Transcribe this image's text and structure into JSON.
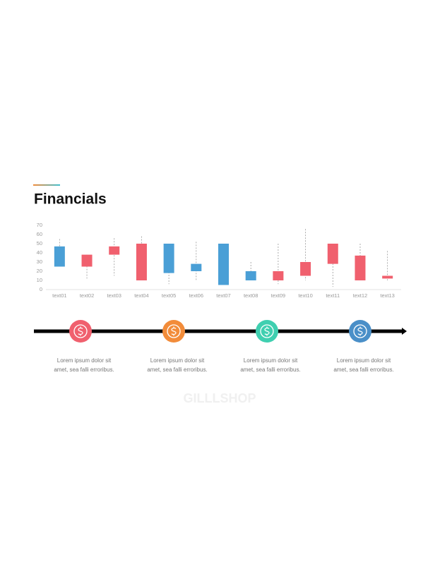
{
  "chart_data": {
    "type": "candlestick",
    "title": "Financials",
    "categories": [
      "text01",
      "text02",
      "text03",
      "text04",
      "text05",
      "text06",
      "text07",
      "text08",
      "text09",
      "text10",
      "text11",
      "text12",
      "text13"
    ],
    "open": [
      25,
      38,
      47,
      50,
      18,
      20,
      5,
      10,
      20,
      30,
      50,
      37,
      15
    ],
    "close": [
      47,
      25,
      38,
      10,
      50,
      28,
      50,
      20,
      10,
      15,
      28,
      10,
      12
    ],
    "high": [
      55,
      38,
      56,
      58,
      50,
      52,
      50,
      30,
      50,
      66,
      50,
      50,
      42
    ],
    "low": [
      25,
      12,
      15,
      10,
      6,
      10,
      5,
      10,
      6,
      10,
      3,
      10,
      10
    ],
    "up_color": "#4a9fd6",
    "down_color": "#f0606e",
    "ylim": [
      0,
      70
    ],
    "yticks": [
      0,
      10,
      20,
      30,
      40,
      50,
      60,
      70
    ]
  },
  "timeline": {
    "steps": [
      {
        "color": "#f0606e",
        "lines": [
          "Lorem ipsum dolor sit",
          "amet, sea falli erroribus."
        ]
      },
      {
        "color": "#f28c3a",
        "lines": [
          "Lorem ipsum dolor sit",
          "amet, sea falli erroribus."
        ]
      },
      {
        "color": "#3fcfb0",
        "lines": [
          "Lorem ipsum dolor sit",
          "amet, sea falli erroribus."
        ]
      },
      {
        "color": "#4a8fc8",
        "lines": [
          "Lorem ipsum dolor sit",
          "amet, sea falli erroribus."
        ]
      }
    ]
  },
  "watermark": "GILLLSHOP"
}
